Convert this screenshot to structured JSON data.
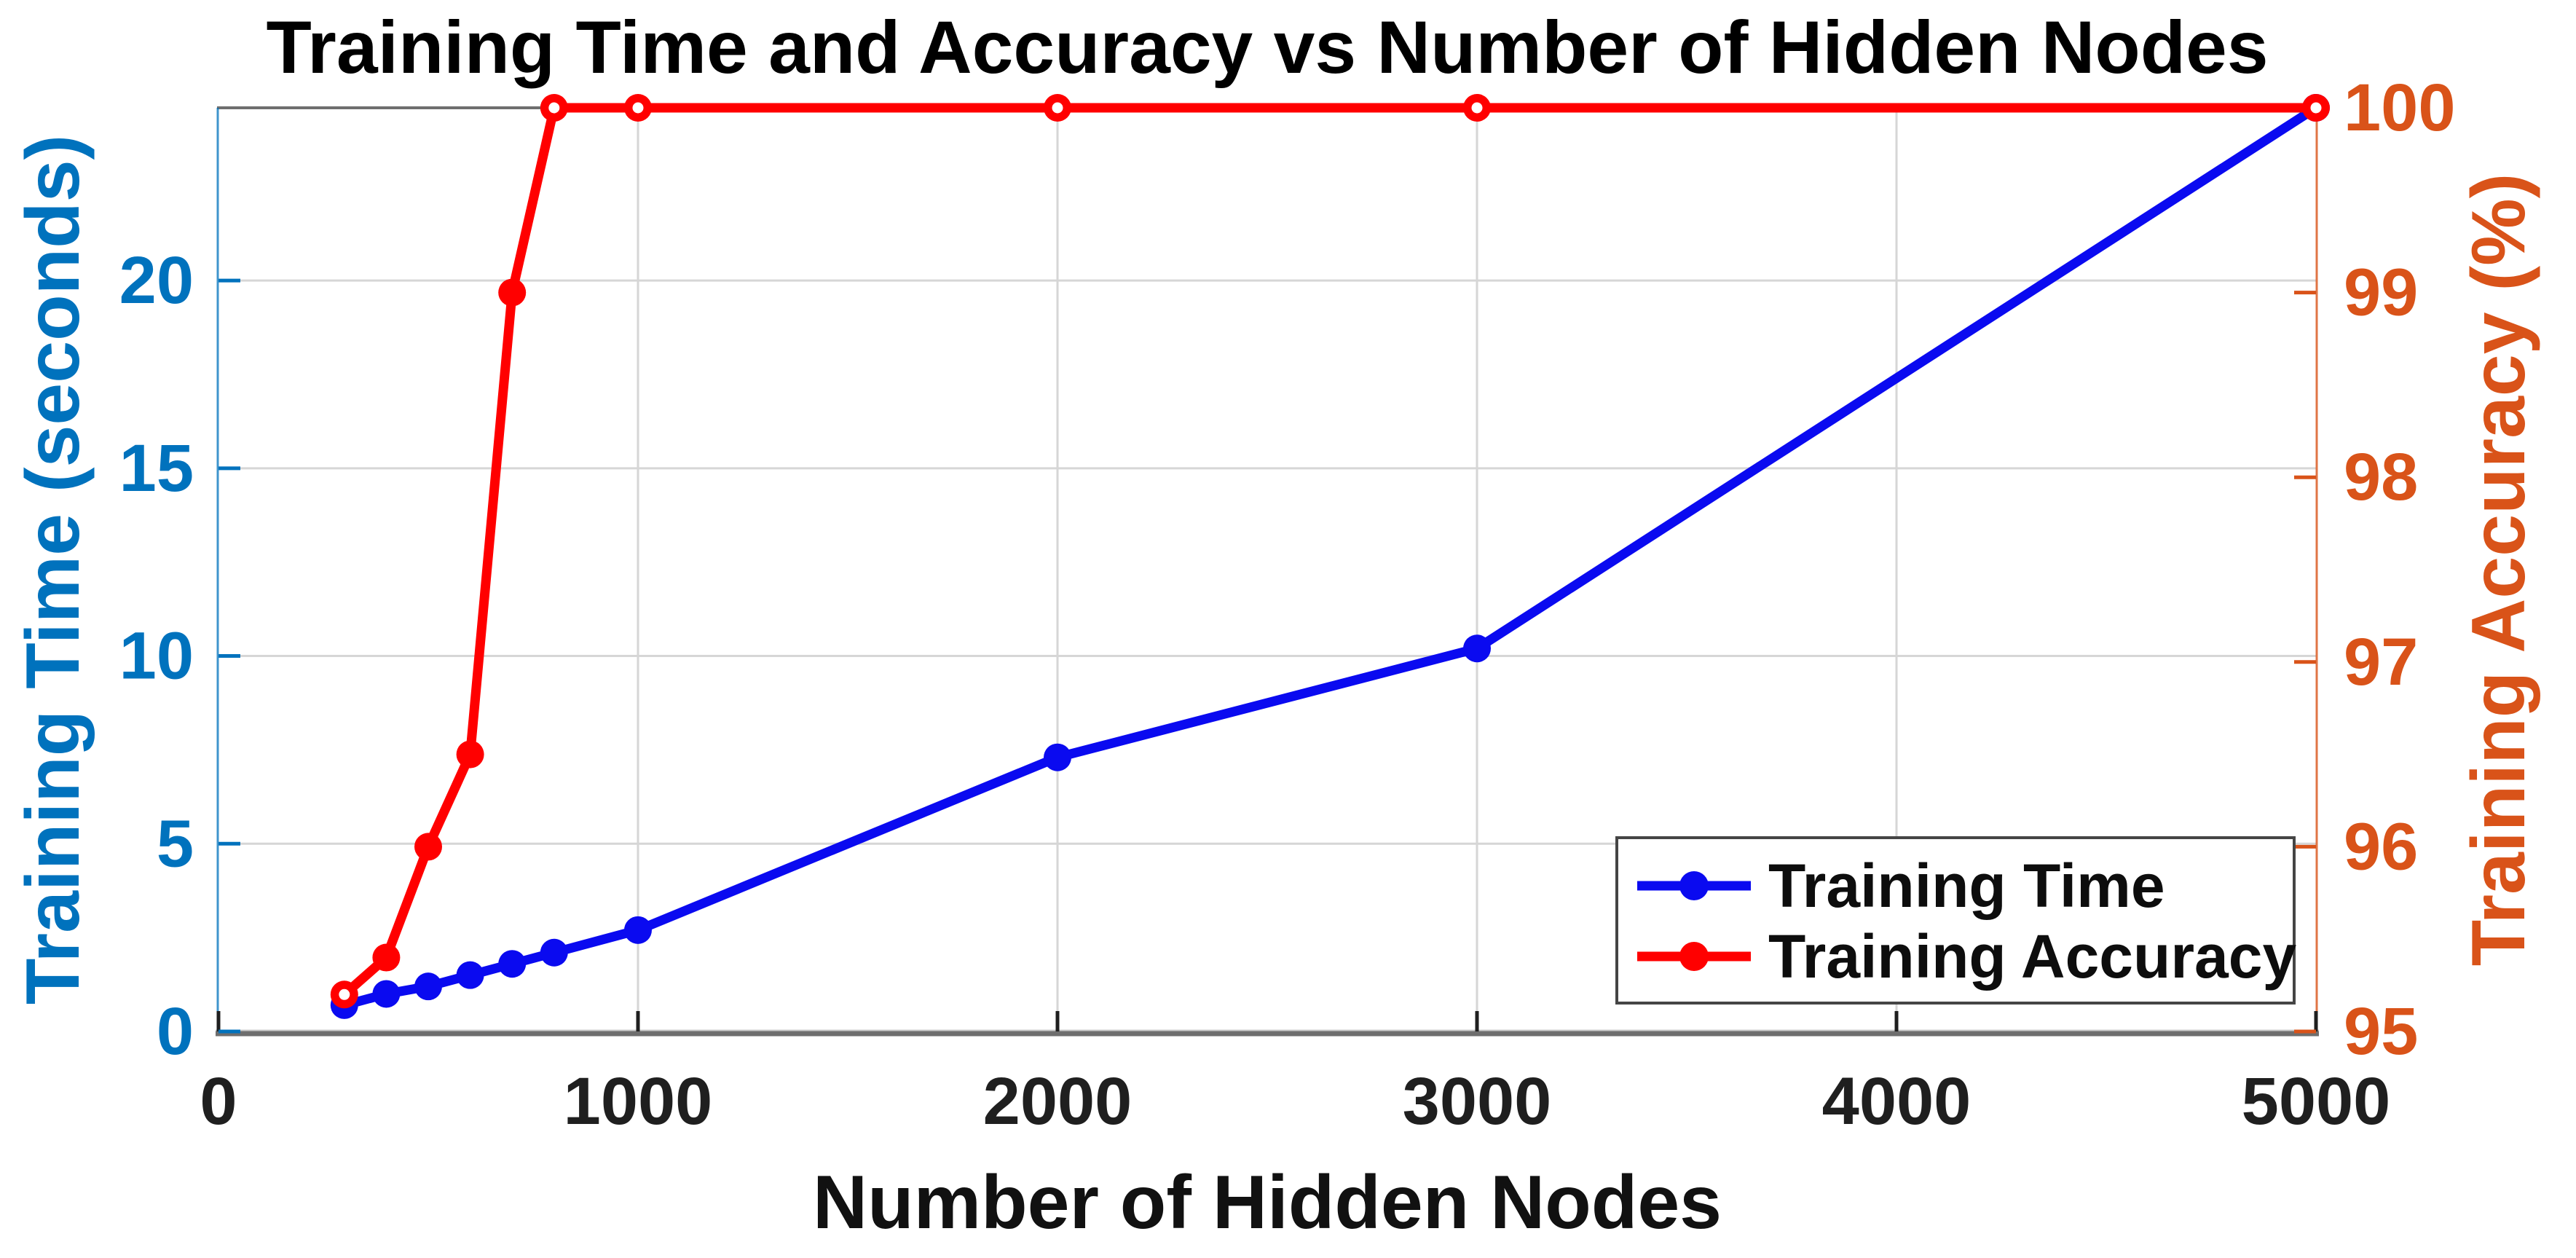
{
  "figure": {
    "background": "#ffffff"
  },
  "chart_data": {
    "type": "line",
    "title": "Training Time and Accuracy vs Number of Hidden Nodes",
    "xlabel": "Number of Hidden Nodes",
    "ylabel_left": "Training Time (seconds)",
    "ylabel_right": "Training Accuracy (%)",
    "x": [
      300,
      400,
      500,
      600,
      700,
      800,
      1000,
      2000,
      3000,
      5000
    ],
    "series": [
      {
        "name": "Training Time",
        "axis": "left",
        "color": "#0a0af0",
        "marker": "filled-circle",
        "values": [
          0.7,
          1.0,
          1.2,
          1.5,
          1.8,
          2.1,
          2.7,
          7.3,
          10.2,
          24.6
        ]
      },
      {
        "name": "Training Accuracy",
        "axis": "right",
        "color": "#ff0000",
        "marker": "open-circle",
        "values": [
          95.2,
          95.4,
          96.0,
          96.5,
          99.0,
          100,
          100,
          100,
          100,
          100
        ]
      }
    ],
    "xlim": [
      0,
      5000
    ],
    "ylim_left": [
      0,
      24.6
    ],
    "ylim_right": [
      95,
      100
    ],
    "xticks": [
      0,
      1000,
      2000,
      3000,
      4000,
      5000
    ],
    "yticks_left": [
      0,
      5,
      10,
      15,
      20
    ],
    "yticks_right": [
      95,
      96,
      97,
      98,
      99,
      100
    ],
    "grid": true,
    "legend_position": "lower right",
    "axis_colors": {
      "left": "#0072BD",
      "right": "#D95319",
      "x": "#1f1f1f"
    },
    "grid_color": "#d6d6d6",
    "spine_color": "#6e6e6e"
  }
}
